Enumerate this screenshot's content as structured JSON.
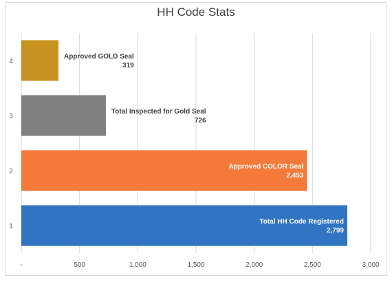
{
  "chart_data": {
    "type": "bar",
    "orientation": "horizontal",
    "title": "HH Code Stats",
    "categories": [
      "1",
      "2",
      "3",
      "4"
    ],
    "series": [
      {
        "values": [
          2799,
          2453,
          726,
          319
        ],
        "labels": [
          "Total HH Code Registered",
          "Approved COLOR Seal",
          "Total Inspected for Gold Seal",
          "Approved GOLD Seal"
        ],
        "value_labels": [
          "2,799",
          "2,453",
          "726",
          "319"
        ],
        "colors": [
          "#3174c2",
          "#f47a3a",
          "#808080",
          "#c89221"
        ]
      }
    ],
    "xlim": [
      0,
      3000
    ],
    "xticks": [
      0,
      500,
      1000,
      1500,
      2000,
      2500,
      3000
    ],
    "xtick_labels": [
      "-",
      "500",
      "1,000",
      "1,500",
      "2,000",
      "2,500",
      "3,000"
    ],
    "grid": true
  }
}
